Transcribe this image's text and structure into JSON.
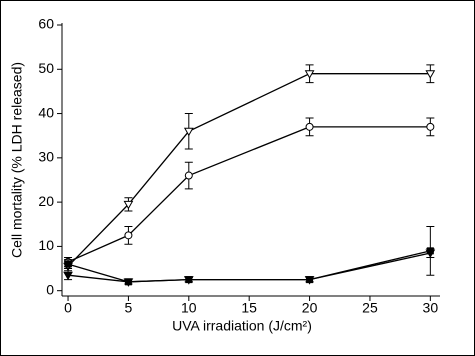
{
  "chart_data": {
    "type": "line",
    "xlabel": "UVA irradiation (J/cm²)",
    "ylabel": "Cell mortality (% LDH released)",
    "x": [
      0,
      5,
      10,
      20,
      30
    ],
    "xlim": [
      -0.5,
      30.8
    ],
    "xticks": [
      0,
      5,
      10,
      15,
      20,
      25,
      30
    ],
    "ylim": [
      -1.2,
      60
    ],
    "yticks": [
      0,
      10,
      20,
      30,
      40,
      50,
      60
    ],
    "series": [
      {
        "marker": "triangle-down",
        "filled": false,
        "color": "#000000",
        "values": [
          5.5,
          19.5,
          36,
          49,
          49
        ],
        "errors": [
          1.5,
          1.5,
          4,
          2,
          2
        ]
      },
      {
        "marker": "circle",
        "filled": false,
        "color": "#000000",
        "values": [
          6.5,
          12.5,
          26,
          37,
          37
        ],
        "errors": [
          1,
          2,
          3,
          2,
          2
        ]
      },
      {
        "marker": "square",
        "filled": true,
        "color": "#000000",
        "values": [
          6,
          2,
          2.5,
          2.5,
          9
        ],
        "errors": [
          1,
          0.5,
          0.5,
          0.5,
          5.5
        ]
      },
      {
        "marker": "triangle-down",
        "filled": true,
        "color": "#000000",
        "values": [
          3.5,
          2,
          2.5,
          2.5,
          8.5
        ],
        "errors": [
          1,
          0.5,
          0.5,
          0.5,
          1
        ]
      }
    ]
  }
}
